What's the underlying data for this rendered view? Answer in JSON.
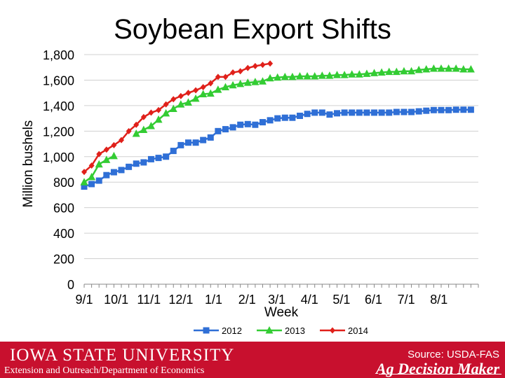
{
  "title": "Soybean Export Shifts",
  "footer": {
    "university": "IOWA STATE UNIVERSITY",
    "department": "Extension and Outreach/Department of Economics",
    "source": "Source: USDA-FAS",
    "brand": "Ag Decision Maker",
    "color": "#c8102e"
  },
  "chart_data": {
    "type": "line",
    "title": "Soybean Export Shifts",
    "xlabel": "Week",
    "ylabel": "Million bushels",
    "x_unit": "week",
    "x_tick_labels": [
      "9/1",
      "10/1",
      "11/1",
      "12/1",
      "1/1",
      "2/1",
      "3/1",
      "4/1",
      "5/1",
      "6/1",
      "7/1",
      "8/1"
    ],
    "x_tick_weeks": [
      0,
      4.3,
      8.7,
      13,
      17.4,
      21.9,
      25.9,
      30.3,
      34.6,
      38.9,
      43.3,
      47.7
    ],
    "xlim": [
      0,
      53
    ],
    "ylim": [
      0,
      1800
    ],
    "y_ticks": [
      0,
      200,
      400,
      600,
      800,
      1000,
      1200,
      1400,
      1600,
      1800
    ],
    "y_tick_labels": [
      "0",
      "200",
      "400",
      "600",
      "800",
      "1,000",
      "1,200",
      "1,400",
      "1,600",
      "1,800"
    ],
    "grid": true,
    "legend_position": "bottom",
    "series": [
      {
        "name": "2012",
        "color": "#2f6fd6",
        "marker": "square",
        "x": [
          0,
          1,
          2,
          3,
          4,
          5,
          6,
          7,
          8,
          9,
          10,
          11,
          12,
          13,
          14,
          15,
          16,
          17,
          18,
          19,
          20,
          21,
          22,
          23,
          24,
          25,
          26,
          27,
          28,
          29,
          30,
          31,
          32,
          33,
          34,
          35,
          36,
          37,
          38,
          39,
          40,
          41,
          42,
          43,
          44,
          45,
          46,
          47,
          48,
          49,
          50,
          51,
          52
        ],
        "values": [
          765,
          785,
          812,
          855,
          878,
          895,
          920,
          945,
          955,
          980,
          990,
          1000,
          1045,
          1090,
          1110,
          1110,
          1130,
          1150,
          1200,
          1215,
          1230,
          1250,
          1255,
          1250,
          1270,
          1285,
          1300,
          1305,
          1305,
          1320,
          1335,
          1345,
          1345,
          1330,
          1340,
          1345,
          1345,
          1345,
          1345,
          1345,
          1345,
          1345,
          1350,
          1350,
          1350,
          1355,
          1360,
          1365,
          1365,
          1365,
          1368,
          1368,
          1368
        ]
      },
      {
        "name": "2013",
        "color": "#33cc33",
        "marker": "triangle",
        "x": [
          0,
          1,
          2,
          3,
          4,
          7,
          8,
          9,
          10,
          11,
          12,
          13,
          14,
          15,
          16,
          17,
          18,
          19,
          20,
          21,
          22,
          23,
          24,
          25,
          26,
          27,
          28,
          29,
          30,
          31,
          32,
          33,
          34,
          35,
          36,
          37,
          38,
          39,
          40,
          41,
          42,
          43,
          44,
          45,
          46,
          47,
          48,
          49,
          50,
          51,
          52
        ],
        "values": [
          800,
          840,
          940,
          975,
          1005,
          1180,
          1210,
          1240,
          1290,
          1340,
          1375,
          1410,
          1425,
          1455,
          1490,
          1495,
          1525,
          1545,
          1560,
          1570,
          1580,
          1585,
          1590,
          1615,
          1620,
          1625,
          1625,
          1630,
          1630,
          1630,
          1635,
          1635,
          1640,
          1640,
          1645,
          1645,
          1650,
          1655,
          1660,
          1665,
          1665,
          1670,
          1670,
          1680,
          1685,
          1690,
          1690,
          1690,
          1690,
          1685,
          1685
        ]
      },
      {
        "name": "2014",
        "color": "#e0201a",
        "marker": "diamond",
        "x": [
          0,
          1,
          2,
          3,
          4,
          5,
          6,
          7,
          8,
          9,
          10,
          11,
          12,
          13,
          14,
          15,
          16,
          17,
          18,
          19,
          20,
          21,
          22,
          23,
          24,
          25
        ],
        "values": [
          880,
          930,
          1020,
          1055,
          1090,
          1130,
          1200,
          1250,
          1310,
          1345,
          1365,
          1410,
          1450,
          1475,
          1500,
          1520,
          1545,
          1575,
          1625,
          1625,
          1660,
          1670,
          1695,
          1710,
          1720,
          1730
        ]
      }
    ]
  }
}
